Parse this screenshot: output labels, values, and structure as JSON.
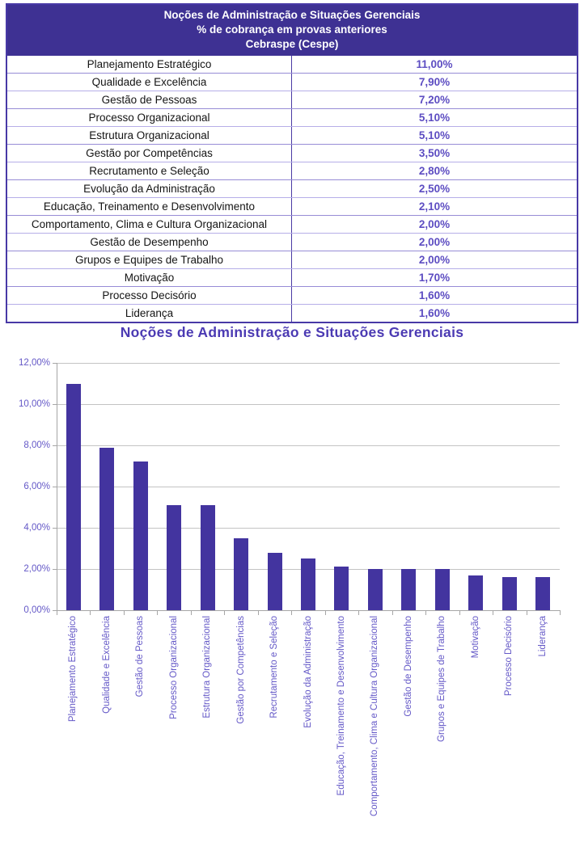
{
  "table": {
    "header_lines": [
      "Noções de Administração e Situações Gerenciais",
      "% de cobrança em provas anteriores",
      "Cebraspe (Cespe)"
    ],
    "rows": [
      {
        "topic": "Planejamento Estratégico",
        "value": "11,00%"
      },
      {
        "topic": "Qualidade e Excelência",
        "value": "7,90%"
      },
      {
        "topic": "Gestão de Pessoas",
        "value": "7,20%"
      },
      {
        "topic": "Processo Organizacional",
        "value": "5,10%"
      },
      {
        "topic": "Estrutura Organizacional",
        "value": "5,10%"
      },
      {
        "topic": "Gestão por Competências",
        "value": "3,50%"
      },
      {
        "topic": "Recrutamento e Seleção",
        "value": "2,80%"
      },
      {
        "topic": "Evolução da Administração",
        "value": "2,50%"
      },
      {
        "topic": "Educação, Treinamento e Desenvolvimento",
        "value": "2,10%"
      },
      {
        "topic": "Comportamento, Clima e Cultura Organizacional",
        "value": "2,00%"
      },
      {
        "topic": "Gestão de Desempenho",
        "value": "2,00%"
      },
      {
        "topic": "Grupos e Equipes de Trabalho",
        "value": "2,00%"
      },
      {
        "topic": "Motivação",
        "value": "1,70%"
      },
      {
        "topic": "Processo Decisório",
        "value": "1,60%"
      },
      {
        "topic": "Liderança",
        "value": "1,60%"
      }
    ]
  },
  "chart_data": {
    "type": "bar",
    "title": "Noções de Administração e Situações Gerenciais",
    "categories": [
      "Planejamento Estratégico",
      "Qualidade e Excelência",
      "Gestão de Pessoas",
      "Processo Organizacional",
      "Estrutura Organizacional",
      "Gestão por Competências",
      "Recrutamento e Seleção",
      "Evolução da Administração",
      "Educação, Treinamento e Desenvolvimento",
      "Comportamento, Clima e Cultura Organizacional",
      "Gestão de Desempenho",
      "Grupos e Equipes de Trabalho",
      "Motivação",
      "Processo Decisório",
      "Liderança"
    ],
    "values": [
      11.0,
      7.9,
      7.2,
      5.1,
      5.1,
      3.5,
      2.8,
      2.5,
      2.1,
      2.0,
      2.0,
      2.0,
      1.7,
      1.6,
      1.6
    ],
    "xlabel": "",
    "ylabel": "",
    "ylim": [
      0,
      12
    ],
    "yticks": {
      "values": [
        0,
        2,
        4,
        6,
        8,
        10,
        12
      ],
      "labels": [
        "0,00%",
        "2,00%",
        "4,00%",
        "6,00%",
        "8,00%",
        "10,00%",
        "12,00%"
      ]
    },
    "grid": true,
    "legend": false,
    "bar_color": "#43349f"
  },
  "colors": {
    "header_bg": "#3e3193",
    "table_border": "#4839a6",
    "row_separator": "#b6aee8",
    "column_divider": "#4a3aa4",
    "percent_text": "#5d4dc2",
    "chart_text": "#6458c7",
    "title_text": "#4b3ab3",
    "bar": "#43349f",
    "gridline": "#c3c3c3",
    "axis": "#a6a6a6"
  }
}
